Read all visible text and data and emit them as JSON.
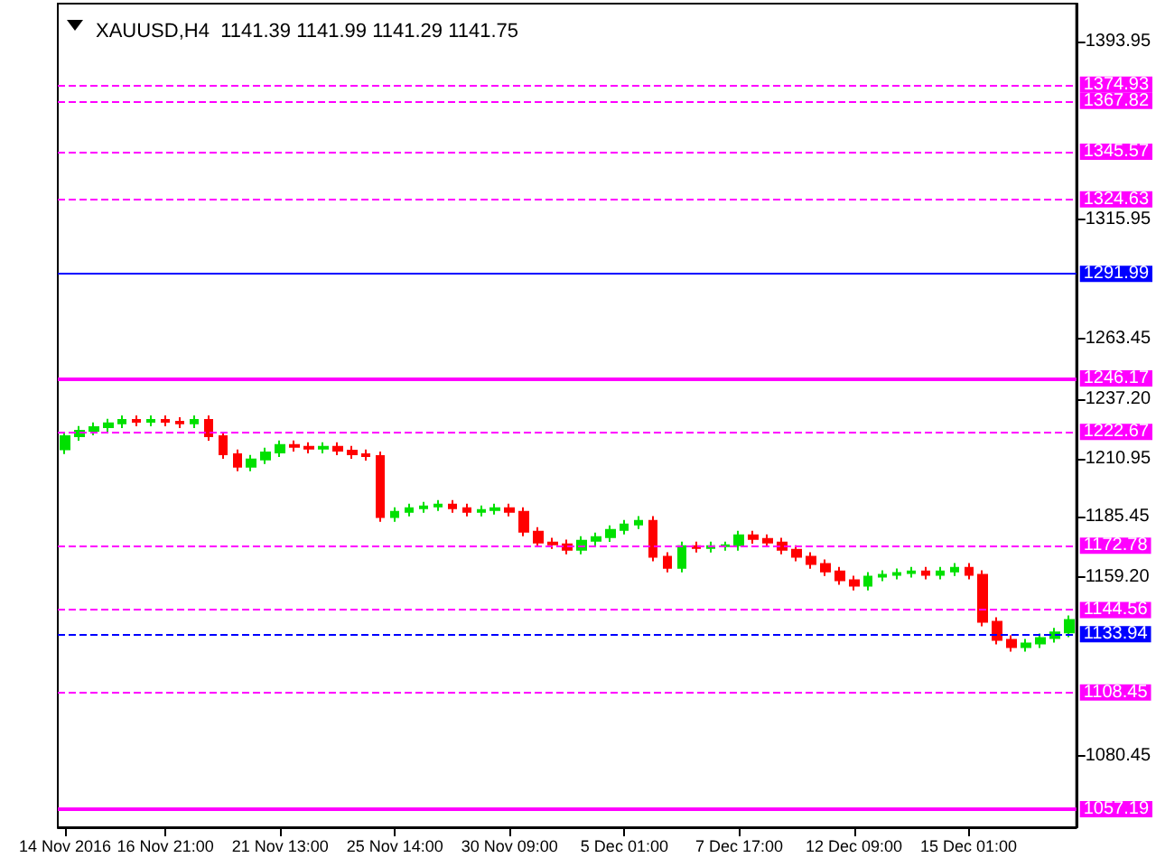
{
  "chart_data": {
    "type": "candlestick",
    "title": "XAUUSD,H4  1141.39 1141.99 1141.29 1141.75",
    "categories": [
      "14 Nov 2016",
      null,
      null,
      null,
      null,
      null,
      null,
      "16 Nov 21:00",
      null,
      null,
      null,
      null,
      null,
      null,
      null,
      "21 Nov 13:00",
      null,
      null,
      null,
      null,
      null,
      null,
      null,
      "25 Nov 14:00",
      null,
      null,
      null,
      null,
      null,
      null,
      null,
      "30 Nov 09:00",
      null,
      null,
      null,
      null,
      null,
      null,
      null,
      "5 Dec 01:00",
      null,
      null,
      null,
      null,
      null,
      null,
      null,
      "7 Dec 17:00",
      null,
      null,
      null,
      null,
      null,
      null,
      null,
      "12 Dec 09:00",
      null,
      null,
      null,
      null,
      null,
      null,
      null,
      "15 Dec 01:00",
      null,
      null,
      null,
      null,
      null,
      null,
      null
    ],
    "ohlc": [
      [
        1215.0,
        1222.8,
        1213.0,
        1220.8
      ],
      [
        1220.8,
        1225.2,
        1218.8,
        1223.2
      ],
      [
        1223.2,
        1226.8,
        1221.2,
        1224.8
      ],
      [
        1224.8,
        1228.4,
        1222.8,
        1226.4
      ],
      [
        1226.4,
        1229.9,
        1224.4,
        1227.9
      ],
      [
        1227.9,
        1229.9,
        1225.1,
        1227.1
      ],
      [
        1227.1,
        1229.9,
        1225.1,
        1227.9
      ],
      [
        1227.9,
        1229.9,
        1225.1,
        1227.1
      ],
      [
        1227.1,
        1229.1,
        1224.4,
        1226.4
      ],
      [
        1226.4,
        1229.9,
        1224.4,
        1227.9
      ],
      [
        1227.9,
        1229.9,
        1218.8,
        1220.8
      ],
      [
        1220.8,
        1222.8,
        1210.9,
        1212.9
      ],
      [
        1212.9,
        1214.9,
        1205.4,
        1207.4
      ],
      [
        1207.4,
        1212.6,
        1205.4,
        1210.6
      ],
      [
        1210.6,
        1215.7,
        1208.6,
        1213.7
      ],
      [
        1213.7,
        1218.9,
        1211.7,
        1216.9
      ],
      [
        1216.9,
        1218.9,
        1214.1,
        1216.1
      ],
      [
        1216.1,
        1218.1,
        1213.3,
        1215.3
      ],
      [
        1215.3,
        1218.1,
        1213.3,
        1216.1
      ],
      [
        1216.1,
        1218.1,
        1212.5,
        1214.5
      ],
      [
        1214.5,
        1216.5,
        1210.9,
        1212.9
      ],
      [
        1212.9,
        1214.9,
        1210.1,
        1212.1
      ],
      [
        1212.1,
        1214.1,
        1183.3,
        1185.3
      ],
      [
        1185.3,
        1189.6,
        1183.3,
        1187.6
      ],
      [
        1187.6,
        1191.2,
        1185.6,
        1189.2
      ],
      [
        1189.2,
        1192.0,
        1187.2,
        1190.0
      ],
      [
        1190.0,
        1192.8,
        1188.0,
        1190.8
      ],
      [
        1190.8,
        1192.8,
        1187.2,
        1189.2
      ],
      [
        1189.2,
        1191.2,
        1185.6,
        1187.6
      ],
      [
        1187.6,
        1190.4,
        1185.6,
        1188.4
      ],
      [
        1188.4,
        1191.2,
        1186.4,
        1189.2
      ],
      [
        1189.2,
        1191.2,
        1185.6,
        1187.6
      ],
      [
        1187.6,
        1189.6,
        1176.9,
        1178.9
      ],
      [
        1178.9,
        1180.9,
        1172.2,
        1174.2
      ],
      [
        1174.2,
        1176.2,
        1171.4,
        1173.4
      ],
      [
        1173.4,
        1175.4,
        1169.0,
        1171.0
      ],
      [
        1171.0,
        1176.9,
        1169.0,
        1174.9
      ],
      [
        1174.9,
        1178.5,
        1172.9,
        1176.5
      ],
      [
        1176.5,
        1181.7,
        1174.5,
        1179.7
      ],
      [
        1179.7,
        1184.1,
        1177.7,
        1182.1
      ],
      [
        1182.1,
        1185.7,
        1180.1,
        1183.7
      ],
      [
        1183.7,
        1185.7,
        1165.9,
        1167.9
      ],
      [
        1167.9,
        1169.9,
        1161.1,
        1163.1
      ],
      [
        1163.1,
        1174.6,
        1161.1,
        1172.6
      ],
      [
        1172.6,
        1174.6,
        1169.8,
        1171.8
      ],
      [
        1171.8,
        1174.6,
        1169.8,
        1172.6
      ],
      [
        1172.6,
        1174.6,
        1170.6,
        1173.0
      ],
      [
        1173.0,
        1179.3,
        1170.6,
        1177.3
      ],
      [
        1177.3,
        1179.3,
        1173.7,
        1175.7
      ],
      [
        1175.7,
        1177.7,
        1172.2,
        1174.2
      ],
      [
        1174.2,
        1176.2,
        1169.0,
        1171.0
      ],
      [
        1171.0,
        1173.0,
        1165.9,
        1167.9
      ],
      [
        1167.9,
        1169.9,
        1162.7,
        1164.7
      ],
      [
        1164.7,
        1166.7,
        1159.5,
        1161.5
      ],
      [
        1161.5,
        1163.5,
        1155.6,
        1157.6
      ],
      [
        1157.6,
        1159.6,
        1153.2,
        1155.2
      ],
      [
        1155.2,
        1161.2,
        1153.2,
        1159.2
      ],
      [
        1159.2,
        1162.0,
        1157.2,
        1160.0
      ],
      [
        1160.0,
        1162.8,
        1158.0,
        1160.8
      ],
      [
        1160.8,
        1163.5,
        1158.8,
        1161.5
      ],
      [
        1161.5,
        1163.5,
        1158.0,
        1160.0
      ],
      [
        1160.0,
        1163.5,
        1158.0,
        1161.5
      ],
      [
        1161.5,
        1165.1,
        1159.5,
        1163.1
      ],
      [
        1163.1,
        1165.1,
        1158.0,
        1160.0
      ],
      [
        1160.0,
        1162.0,
        1137.4,
        1139.4
      ],
      [
        1139.4,
        1141.4,
        1129.5,
        1131.5
      ],
      [
        1131.5,
        1133.5,
        1126.3,
        1128.3
      ],
      [
        1128.3,
        1131.9,
        1126.3,
        1129.9
      ],
      [
        1129.9,
        1134.3,
        1127.9,
        1132.3
      ],
      [
        1132.3,
        1136.7,
        1130.3,
        1134.7
      ],
      [
        1134.7,
        1142.2,
        1132.7,
        1140.2
      ]
    ],
    "colors": [
      "#00e000",
      "#00e000",
      "#00e000",
      "#00e000",
      "#00e000",
      "#ff0000",
      "#00e000",
      "#ff0000",
      "#ff0000",
      "#00e000",
      "#ff0000",
      "#ff0000",
      "#ff0000",
      "#00e000",
      "#00e000",
      "#00e000",
      "#ff0000",
      "#ff0000",
      "#00e000",
      "#ff0000",
      "#ff0000",
      "#ff0000",
      "#ff0000",
      "#00e000",
      "#00e000",
      "#00e000",
      "#00e000",
      "#ff0000",
      "#ff0000",
      "#00e000",
      "#00e000",
      "#ff0000",
      "#ff0000",
      "#ff0000",
      "#ff0000",
      "#ff0000",
      "#00e000",
      "#00e000",
      "#00e000",
      "#00e000",
      "#00e000",
      "#ff0000",
      "#ff0000",
      "#00e000",
      "#ff0000",
      "#00e000",
      "#00e000",
      "#00e000",
      "#ff0000",
      "#ff0000",
      "#ff0000",
      "#ff0000",
      "#ff0000",
      "#ff0000",
      "#ff0000",
      "#ff0000",
      "#00e000",
      "#00e000",
      "#00e000",
      "#00e000",
      "#ff0000",
      "#00e000",
      "#00e000",
      "#ff0000",
      "#ff0000",
      "#ff0000",
      "#ff0000",
      "#00e000",
      "#00e000",
      "#00e000",
      "#00e000"
    ],
    "ylim": [
      1049.3,
      1410.5
    ],
    "yticks": [
      1393.95,
      1315.95,
      1263.45,
      {
        "value": 1237.2,
        "label": "1237.20"
      },
      1210.95,
      1185.45,
      {
        "value": 1159.2,
        "label": "1159.20"
      },
      1080.45
    ],
    "ref_lines": [
      {
        "axis": "y",
        "value": 1374.93,
        "label": "1374.93",
        "color": "#ff00ff",
        "line_style": "dashed"
      },
      {
        "axis": "y",
        "value": 1367.82,
        "label": "1367.82",
        "color": "#ff00ff",
        "line_style": "dashed"
      },
      {
        "axis": "y",
        "value": 1345.57,
        "label": "1345.57",
        "color": "#ff00ff",
        "line_style": "dashed"
      },
      {
        "axis": "y",
        "value": 1324.63,
        "label": "1324.63",
        "color": "#ff00ff",
        "line_style": "dashed"
      },
      {
        "axis": "y",
        "value": 1291.99,
        "label": "1291.99",
        "color": "#0000ff",
        "line_style": "solid"
      },
      {
        "axis": "y",
        "value": 1246.17,
        "label": "1246.17",
        "color": "#ff00ff",
        "line_style": "solid"
      },
      {
        "axis": "y",
        "value": 1222.67,
        "label": "1222.67",
        "color": "#ff00ff",
        "line_style": "dashed"
      },
      {
        "axis": "y",
        "value": 1172.78,
        "label": "1172.78",
        "color": "#ff00ff",
        "line_style": "dashed"
      },
      {
        "axis": "y",
        "value": 1144.56,
        "label": "1144.56",
        "color": "#ff00ff",
        "line_style": "dashed"
      },
      {
        "axis": "y",
        "value": 1133.94,
        "label": "1133.94",
        "color": "#0000ff",
        "line_style": "dashed"
      },
      {
        "axis": "y",
        "value": 1108.45,
        "label": "1108.45",
        "color": "#ff00ff",
        "line_style": "dashed"
      },
      {
        "axis": "y",
        "value": 1057.19,
        "label": "1057.19",
        "color": "#ff00ff",
        "line_style": "solid"
      }
    ],
    "grid": false
  }
}
